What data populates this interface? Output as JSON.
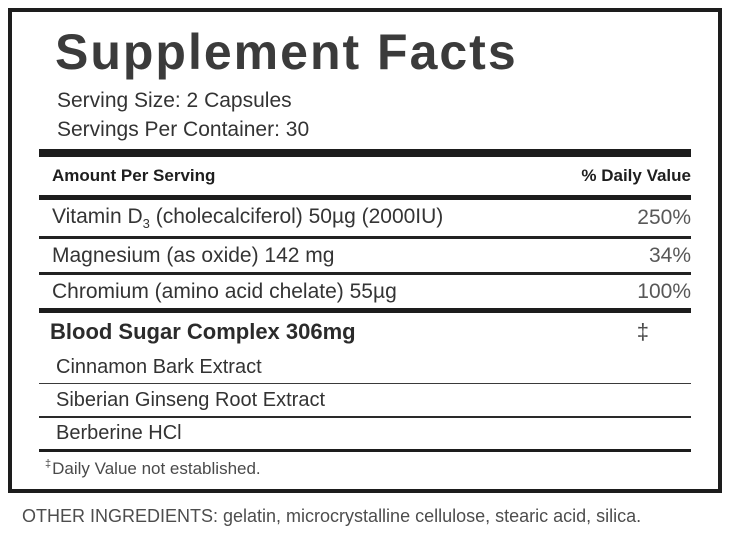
{
  "panel": {
    "title": "Supplement Facts",
    "serving_size": "Serving Size: 2 Capsules",
    "servings_per_container": "Servings Per Container: 30",
    "columns": {
      "amount": "Amount Per Serving",
      "daily_value": "% Daily Value"
    },
    "nutrients": [
      {
        "name": "Vitamin D",
        "subscript": "3",
        "name_rest": " (cholecalciferol) 50µg (2000IU)",
        "daily_value": "250%"
      },
      {
        "name": "Magnesium (as oxide) 142 mg",
        "subscript": "",
        "name_rest": "",
        "daily_value": "34%"
      },
      {
        "name": "Chromium (amino acid chelate) 55µg",
        "subscript": "",
        "name_rest": "",
        "daily_value": "100%"
      }
    ],
    "complex": {
      "heading": "Blood Sugar Complex 306mg",
      "daily_value_symbol": "‡",
      "ingredients": [
        "Cinnamon Bark Extract",
        "Siberian Ginseng Root Extract",
        "Berberine HCl"
      ]
    },
    "footnote": {
      "marker": "‡",
      "text": "Daily Value not established."
    },
    "other_ingredients": "OTHER INGREDIENTS: gelatin, microcrystalline cellulose, stearic acid, silica.",
    "colors": {
      "ink": "#1d1d1d",
      "text": "#343434",
      "muted": "#585858"
    }
  }
}
